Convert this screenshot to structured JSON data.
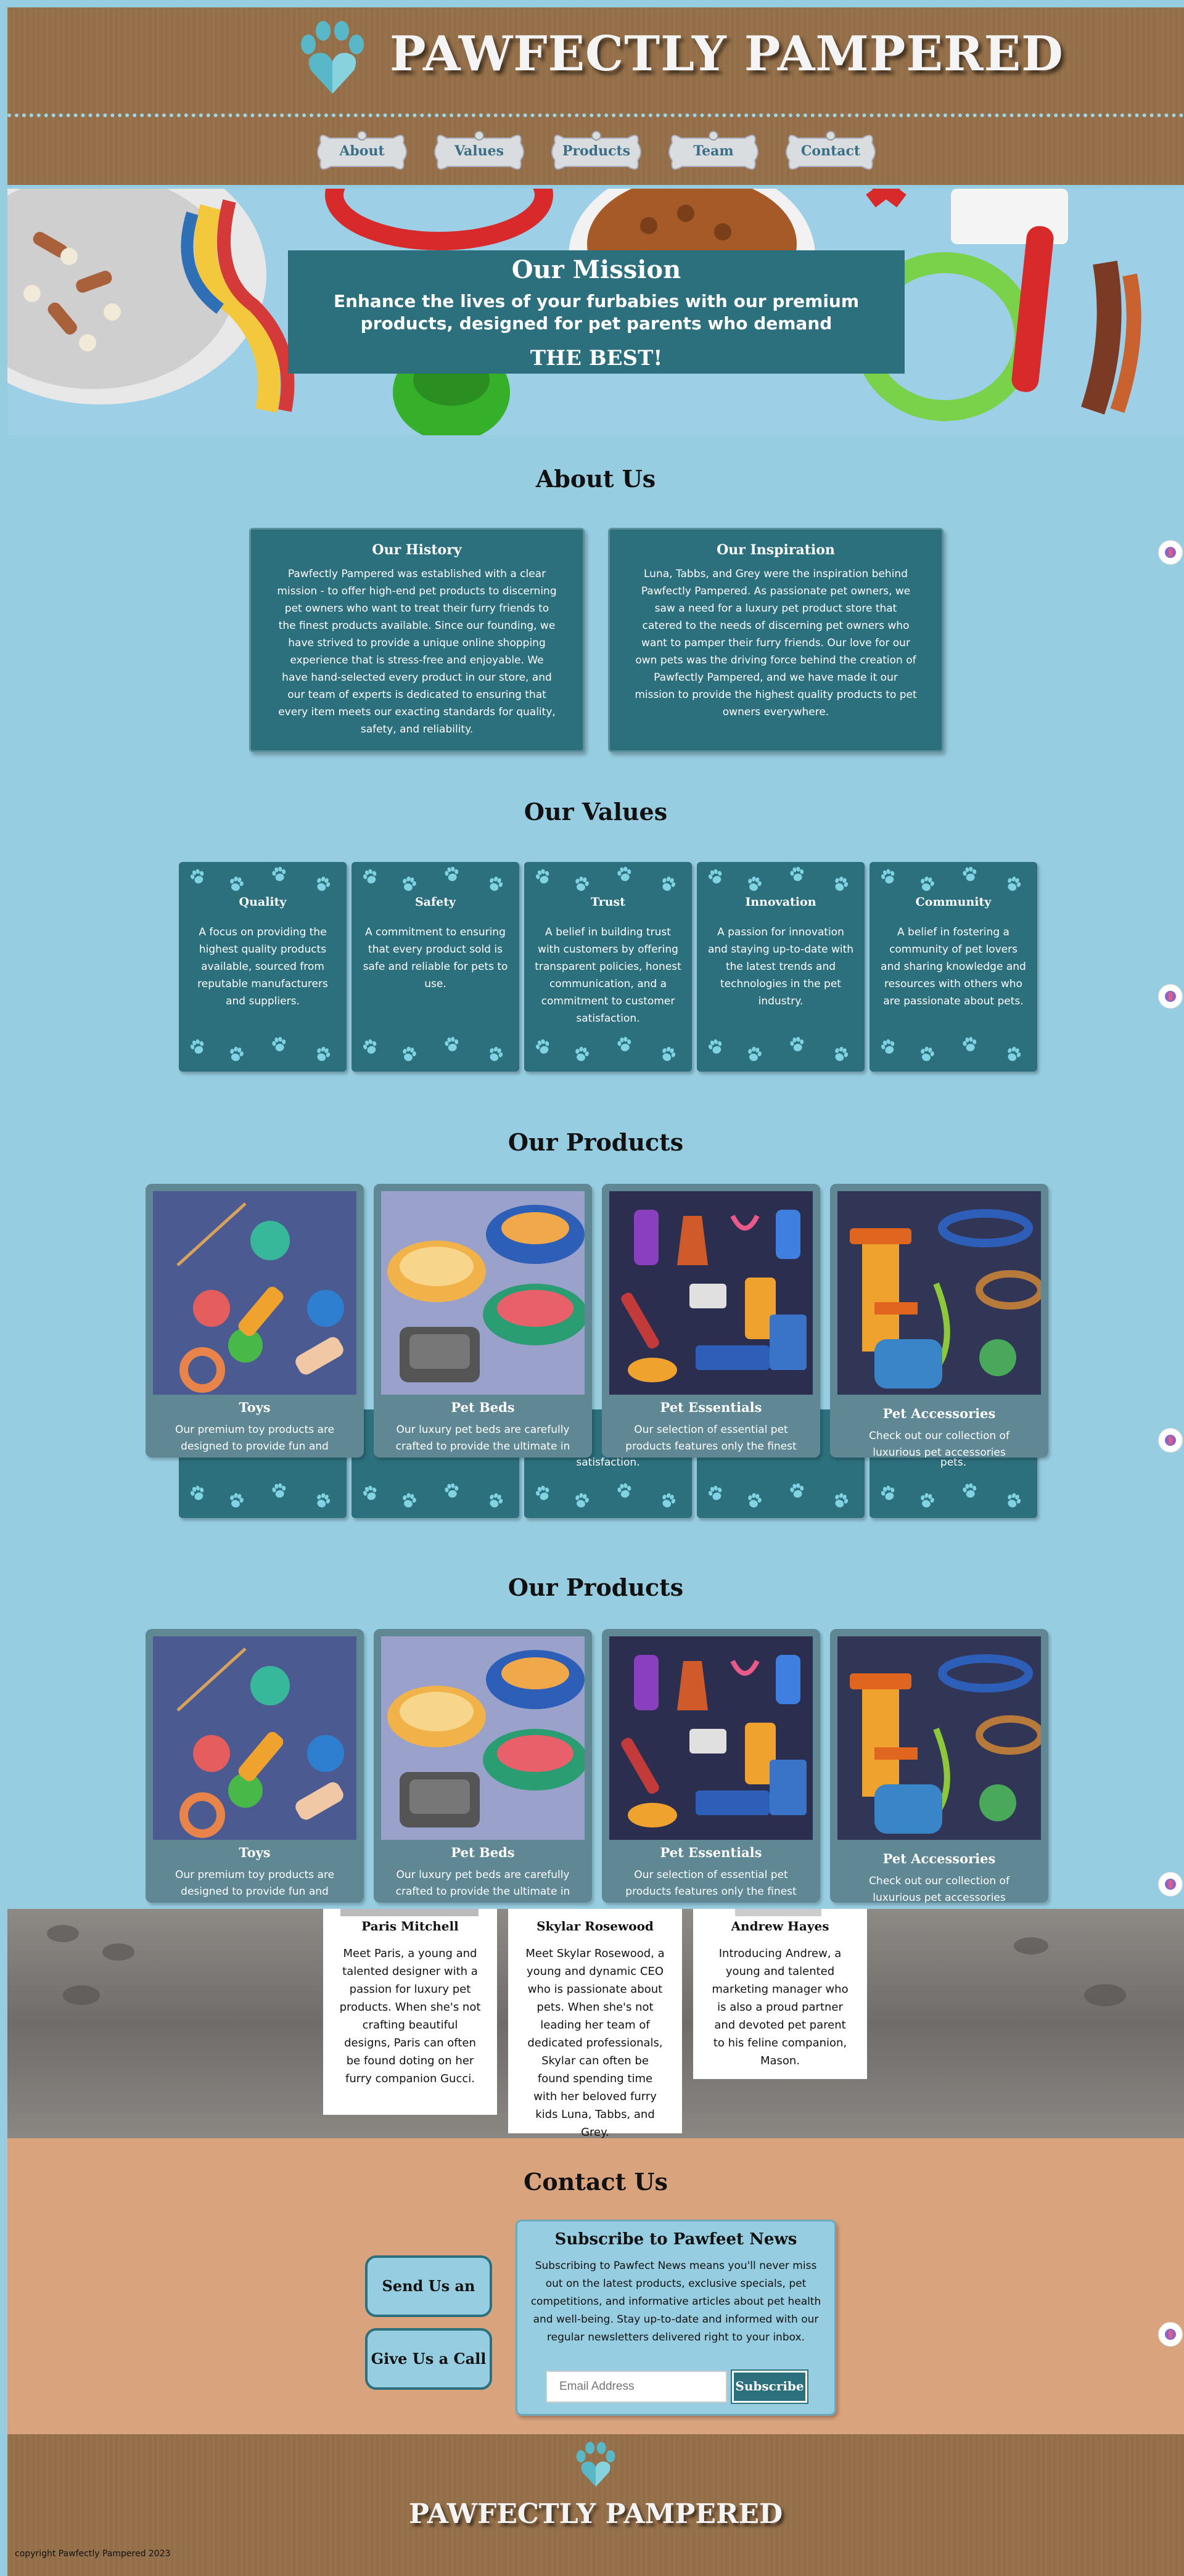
{
  "brand": "PAWFECTLY PAMPERED",
  "nav": [
    "About",
    "Values",
    "Products",
    "Team",
    "Contact"
  ],
  "mission": {
    "title": "Our Mission",
    "text": "Enhance the lives of your furbabies with our premium products, designed for pet parents who demand",
    "tagline": "THE BEST!"
  },
  "about": {
    "title": "About Us",
    "history_title": "Our History",
    "history_text": "Pawfectly Pampered was established with a clear mission - to offer high-end pet products to discerning pet owners who want to treat their furry friends to the finest products available. Since our founding, we have strived to provide a unique online shopping experience that is stress-free and enjoyable. We have hand-selected every product in our store, and our team of experts is dedicated to ensuring that every item meets our exacting standards for quality, safety, and reliability.",
    "inspiration_title": "Our Inspiration",
    "inspiration_text": "Luna, Tabbs, and Grey were the inspiration behind Pawfectly Pampered. As passionate pet owners, we saw a need for a luxury pet product store that catered to the needs of discerning pet owners who want to pamper their furry friends. Our love for our own pets was the driving force behind the creation of Pawfectly Pampered, and we have made it our mission to provide the highest quality products to pet owners everywhere."
  },
  "values": {
    "title": "Our Values",
    "items": [
      {
        "title": "Quality",
        "text": "A focus on providing the highest quality products available, sourced from reputable manufacturers and suppliers."
      },
      {
        "title": "Safety",
        "text": "A commitment to ensuring that every product sold is safe and reliable for pets to use."
      },
      {
        "title": "Trust",
        "text": "A belief in building trust with customers by offering transparent policies, honest communication, and a commitment to customer satisfaction."
      },
      {
        "title": "Innovation",
        "text": "A passion for innovation and staying up-to-date with the latest trends and technologies in the pet industry."
      },
      {
        "title": "Community",
        "text": "A belief in fostering a community of pet lovers and sharing knowledge and resources with others who are passionate about pets."
      }
    ],
    "overflow_text": "satisfaction.",
    "overflow_text2": "pets."
  },
  "products": {
    "title": "Our Products",
    "items": [
      {
        "title": "Toys",
        "text": "Our premium toy products are designed to provide fun and",
        "bg": "#4c5a92"
      },
      {
        "title": "Pet Beds",
        "text": "Our luxury pet beds are carefully crafted to provide the ultimate in",
        "bg": "#9aa2cc"
      },
      {
        "title": "Pet Essentials",
        "text": "Our selection of essential pet products features only the finest",
        "bg": "#2b2e4e"
      },
      {
        "title": "Pet Accessories",
        "text": "Check out our collection of luxurious pet accessories",
        "bg": "#313657"
      }
    ]
  },
  "team": {
    "members": [
      {
        "name": "Paris Mitchell",
        "text": "Meet Paris, a young and talented designer with a passion for luxury pet products. When she's not crafting beautiful designs, Paris can often be found doting on her furry companion Gucci."
      },
      {
        "name": "Skylar Rosewood",
        "text": "Meet Skylar Rosewood, a young and dynamic CEO who is passionate about pets. When she's not leading her team of dedicated professionals, Skylar can often be found spending time with her beloved furry kids Luna, Tabbs, and Grey."
      },
      {
        "name": "Andrew Hayes",
        "text": "Introducing Andrew, a young and talented marketing manager who is also a proud partner and devoted pet parent to his feline companion, Mason."
      }
    ]
  },
  "contact": {
    "title": "Contact Us",
    "email_btn": "Send Us an Email",
    "call_btn": "Give Us a Call",
    "subscribe_title": "Subscribe to Pawfeet News",
    "subscribe_text": "Subscribing to Pawfect News means you'll never miss out on the latest products, exclusive specials, pet competitions, and informative articles about pet health and well-being. Stay up-to-date and informed with our regular newsletters delivered right to your inbox.",
    "email_placeholder": "Email Address",
    "subscribe_btn": "Subscribe"
  },
  "footer": {
    "brand": "PAWFECTLY PAMPERED",
    "copyright": "copyright Pawfectly Pampered 2023"
  },
  "colors": {
    "teal": "#2c6f7d",
    "sky": "#96cde0",
    "brown": "#936e48",
    "tan": "#d9a37d"
  }
}
